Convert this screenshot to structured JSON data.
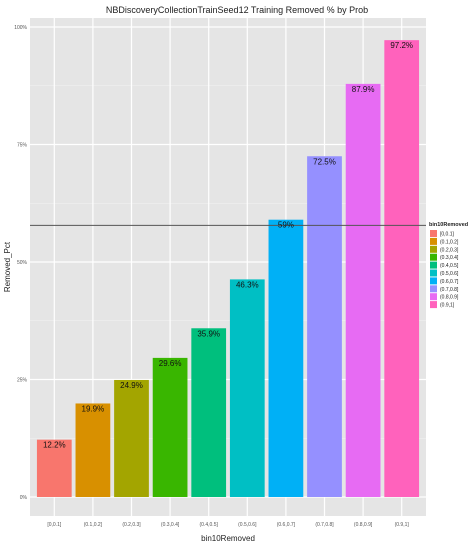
{
  "chart_data": {
    "type": "bar",
    "title": "NBDiscoveryCollectionTrainSeed12 Training Removed % by Prob",
    "xlabel": "bin10Removed",
    "ylabel": "Removed_Pct",
    "categories": [
      "[0,0.1]",
      "(0.1,0.2]",
      "(0.2,0.3]",
      "(0.3,0.4]",
      "(0.4,0.5]",
      "(0.5,0.6]",
      "(0.6,0.7]",
      "(0.7,0.8]",
      "(0.8,0.9]",
      "(0.9,1]"
    ],
    "values": [
      12.2,
      19.9,
      24.9,
      29.6,
      35.9,
      46.3,
      59,
      72.5,
      87.9,
      97.2
    ],
    "data_labels": [
      "12.2%",
      "19.9%",
      "24.9%",
      "29.6%",
      "35.9%",
      "46.3%",
      "59%",
      "72.5%",
      "87.9%",
      "97.2%"
    ],
    "colors": [
      "#F8766D",
      "#D89000",
      "#A3A500",
      "#39B600",
      "#00BF7D",
      "#00BFC4",
      "#00B0F6",
      "#9590FF",
      "#E76BF3",
      "#FF62BC"
    ],
    "ylim": [
      0,
      100
    ],
    "yticks": [
      0,
      25,
      50,
      75,
      100
    ],
    "ytick_labels": [
      "0%",
      "25%",
      "50%",
      "75%",
      "100%"
    ],
    "hline": 57.8,
    "grid": true,
    "legend": {
      "title": "bin10Removed",
      "position": "right",
      "entries": [
        "[0,0.1]",
        "(0.1,0.2]",
        "(0.2,0.3]",
        "(0.3,0.4]",
        "(0.4,0.5]",
        "(0.5,0.6]",
        "(0.6,0.7]",
        "(0.7,0.8]",
        "(0.8,0.9]",
        "(0.9,1]"
      ]
    }
  }
}
